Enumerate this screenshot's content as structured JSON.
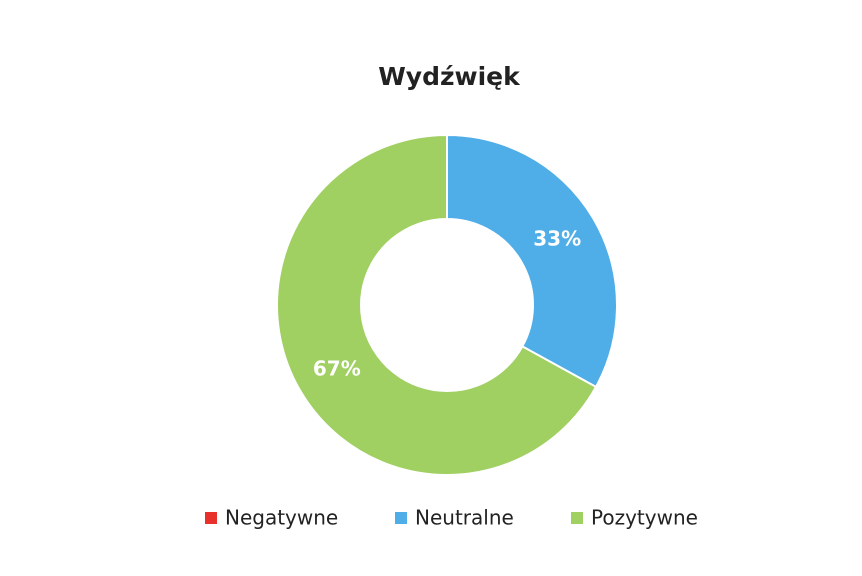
{
  "chart_data": {
    "type": "donut",
    "title": "Wydźwięk",
    "categories": [
      "Negatywne",
      "Neutralne",
      "Pozytywne"
    ],
    "values": [
      0,
      33,
      67
    ],
    "value_labels": [
      null,
      "33%",
      "67%"
    ],
    "colors": [
      "#e8312a",
      "#4fade8",
      "#a0cf62"
    ],
    "legend": "bottom"
  }
}
